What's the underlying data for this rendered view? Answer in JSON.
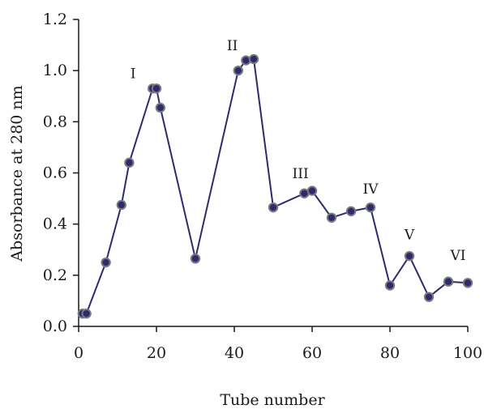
{
  "chart_data": {
    "type": "line",
    "title": "",
    "xlabel": "Tube number",
    "ylabel": "Absorbance  at 280 nm",
    "xlim": [
      0,
      100
    ],
    "ylim": [
      0,
      1.2
    ],
    "xticks": [
      0,
      20,
      40,
      60,
      80,
      100
    ],
    "xtick_labels": [
      "0",
      "20",
      "40",
      "60",
      "80",
      "100"
    ],
    "yticks": [
      0,
      0.2,
      0.4,
      0.6,
      0.8,
      1.0,
      1.2
    ],
    "ytick_labels": [
      "0.0",
      "0.2",
      "0.4",
      "0.6",
      "0.8",
      "1.0",
      "1.2"
    ],
    "grid": false,
    "series": [
      {
        "x": [
          1,
          2,
          7,
          11,
          13,
          19,
          20,
          21,
          30,
          41,
          43,
          45,
          50,
          58,
          60,
          65,
          70,
          75,
          80,
          85,
          90,
          95,
          100
        ],
        "y": [
          0.05,
          0.05,
          0.25,
          0.475,
          0.64,
          0.93,
          0.93,
          0.855,
          0.265,
          1.0,
          1.04,
          1.045,
          0.465,
          0.52,
          0.53,
          0.425,
          0.45,
          0.465,
          0.16,
          0.275,
          0.115,
          0.175,
          0.17
        ]
      }
    ],
    "annotations": [
      {
        "text": "I",
        "x": 14,
        "y": 0.97
      },
      {
        "text": "II",
        "x": 39.5,
        "y": 1.08
      },
      {
        "text": "III",
        "x": 57,
        "y": 0.58
      },
      {
        "text": "IV",
        "x": 75,
        "y": 0.52
      },
      {
        "text": "V",
        "x": 85,
        "y": 0.34
      },
      {
        "text": "VI",
        "x": 97.5,
        "y": 0.26
      }
    ],
    "colors": {
      "line": "#2e2a6e",
      "marker_fill": "#2e2a6e",
      "marker_edge": "#7a7a7a",
      "axis": "#1a1a1a"
    }
  }
}
